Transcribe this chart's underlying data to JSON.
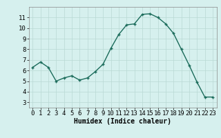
{
  "x": [
    0,
    1,
    2,
    3,
    4,
    5,
    6,
    7,
    8,
    9,
    10,
    11,
    12,
    13,
    14,
    15,
    16,
    17,
    18,
    19,
    20,
    21,
    22,
    23
  ],
  "y": [
    6.3,
    6.8,
    6.3,
    5.0,
    5.3,
    5.5,
    5.1,
    5.3,
    5.9,
    6.6,
    8.1,
    9.4,
    10.3,
    10.4,
    11.3,
    11.35,
    11.0,
    10.4,
    9.5,
    8.0,
    6.5,
    4.9,
    3.5,
    3.5
  ],
  "xlabel": "Humidex (Indice chaleur)",
  "ylim": [
    2.5,
    12.0
  ],
  "xlim": [
    -0.5,
    23.5
  ],
  "yticks": [
    3,
    4,
    5,
    6,
    7,
    8,
    9,
    10,
    11
  ],
  "xticks": [
    0,
    1,
    2,
    3,
    4,
    5,
    6,
    7,
    8,
    9,
    10,
    11,
    12,
    13,
    14,
    15,
    16,
    17,
    18,
    19,
    20,
    21,
    22,
    23
  ],
  "line_color": "#1a6b5a",
  "marker_color": "#1a6b5a",
  "bg_color": "#d6f0ee",
  "grid_color": "#b8d8d4",
  "axis_label_fontsize": 7,
  "tick_fontsize": 6.5
}
